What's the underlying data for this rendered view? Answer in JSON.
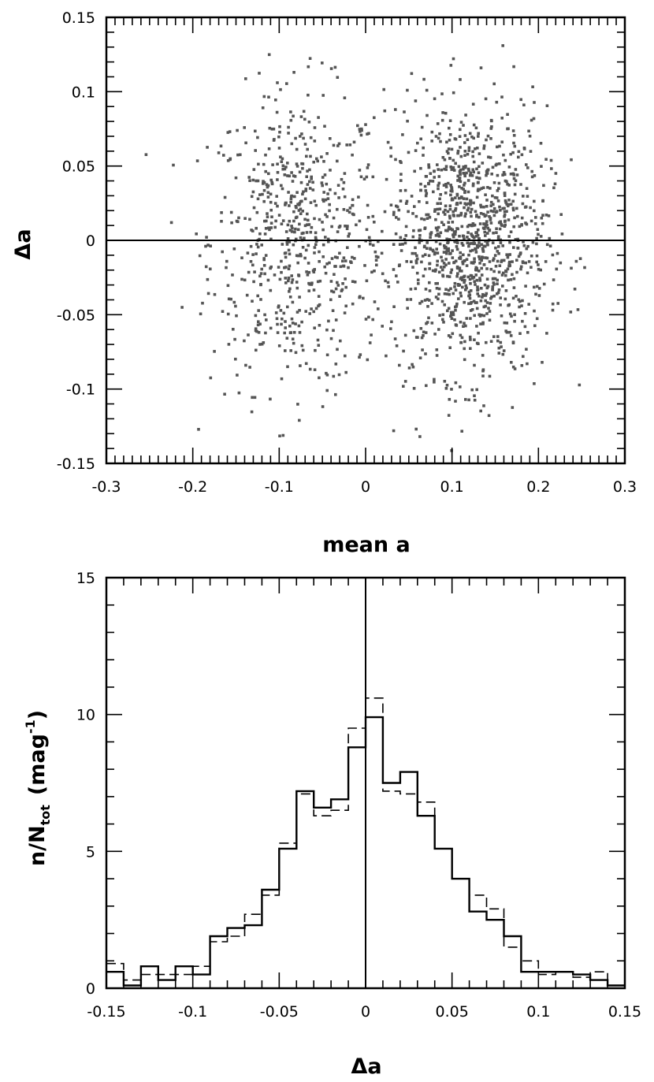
{
  "chart_data": [
    {
      "type": "scatter",
      "title": "",
      "xlabel": "mean a",
      "ylabel": "Δa",
      "xlim": [
        -0.3,
        0.3
      ],
      "ylim": [
        -0.15,
        0.15
      ],
      "xticks": [
        "-0.3",
        "-0.2",
        "-0.1",
        "0",
        "0.1",
        "0.2",
        "0.3"
      ],
      "yticks": [
        "-0.15",
        "-0.1",
        "-0.05",
        "0",
        "0.05",
        "0.1",
        "0.15"
      ],
      "reference_line_y": 0,
      "marker_color": "#555555",
      "clusters": [
        {
          "center_x": -0.08,
          "center_y": 0.0,
          "sd_x": 0.05,
          "sd_y": 0.05,
          "n": 650
        },
        {
          "center_x": 0.12,
          "center_y": 0.0,
          "sd_x": 0.045,
          "sd_y": 0.045,
          "n": 1150
        }
      ]
    },
    {
      "type": "histogram",
      "title": "",
      "xlabel": "Δa",
      "ylabel_main": "n/N",
      "ylabel_sub": "tot",
      "ylabel_tail": "(mag",
      "ylabel_sup": "-1",
      "ylabel_close": ")",
      "xlim": [
        -0.15,
        0.15
      ],
      "ylim": [
        0,
        15
      ],
      "xticks": [
        "-0.15",
        "-0.1",
        "-0.05",
        "0",
        "0.05",
        "0.1",
        "0.15"
      ],
      "yticks": [
        "0",
        "5",
        "10",
        "15"
      ],
      "reference_line_x": 0,
      "bin_edges": [
        -0.15,
        -0.14,
        -0.13,
        -0.12,
        -0.11,
        -0.1,
        -0.09,
        -0.08,
        -0.07,
        -0.06,
        -0.05,
        -0.04,
        -0.03,
        -0.02,
        -0.01,
        0.0,
        0.01,
        0.02,
        0.03,
        0.04,
        0.05,
        0.06,
        0.07,
        0.08,
        0.09,
        0.1,
        0.11,
        0.12,
        0.13,
        0.14,
        0.15
      ],
      "series": [
        {
          "style": "solid",
          "values": [
            0.6,
            0.1,
            0.8,
            0.3,
            0.8,
            0.5,
            1.9,
            2.2,
            2.3,
            3.6,
            5.1,
            7.2,
            6.6,
            6.9,
            8.8,
            9.9,
            7.5,
            7.9,
            6.3,
            5.1,
            4.0,
            2.8,
            2.5,
            1.9,
            0.6,
            0.6,
            0.6,
            0.5,
            0.3,
            0.1
          ]
        },
        {
          "style": "dashed",
          "values": [
            0.9,
            0.3,
            0.5,
            0.5,
            0.5,
            0.8,
            1.7,
            1.9,
            2.7,
            3.4,
            5.3,
            7.1,
            6.3,
            6.5,
            9.5,
            10.6,
            7.2,
            7.1,
            6.8,
            5.1,
            4.0,
            3.4,
            2.9,
            1.5,
            1.0,
            0.5,
            0.6,
            0.4,
            0.6,
            0.1
          ]
        }
      ]
    }
  ]
}
